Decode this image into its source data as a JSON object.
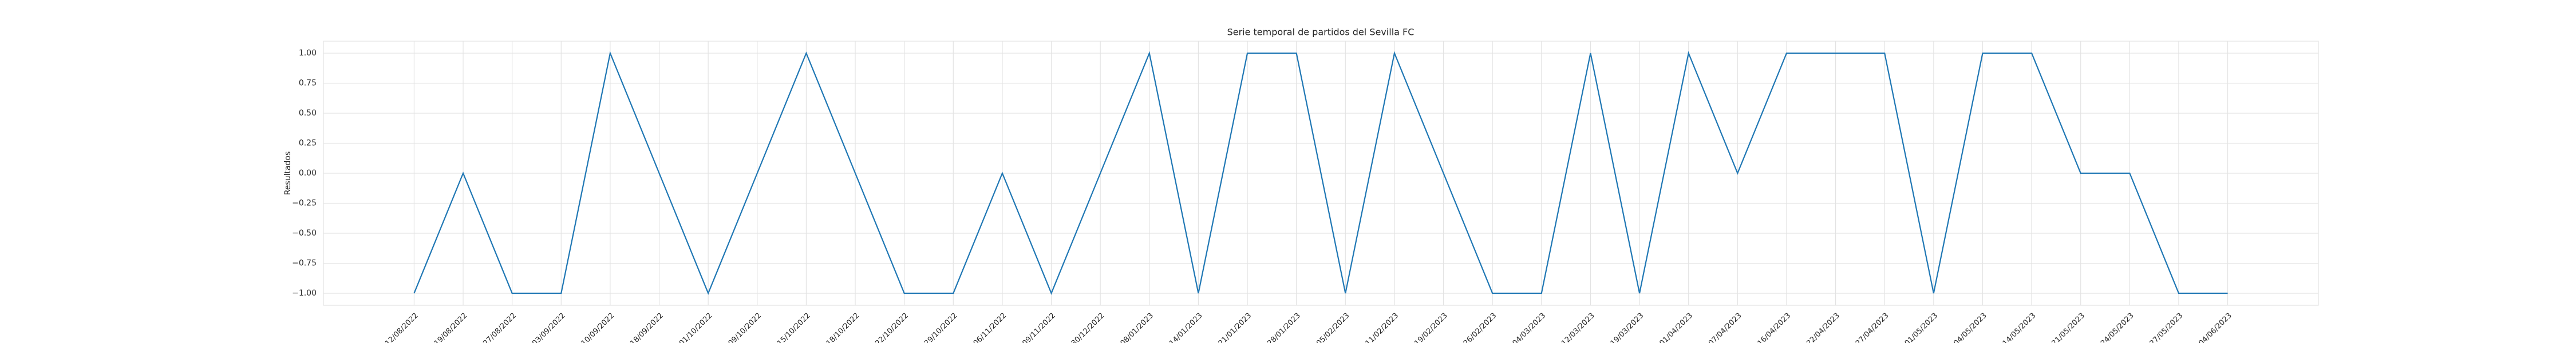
{
  "chart_data": {
    "type": "line",
    "title": "Serie temporal de partidos del Sevilla FC",
    "y_label": "Resultados",
    "categories": [
      "12/08/2022",
      "19/08/2022",
      "27/08/2022",
      "03/09/2022",
      "10/09/2022",
      "18/09/2022",
      "01/10/2022",
      "09/10/2022",
      "15/10/2022",
      "18/10/2022",
      "22/10/2022",
      "29/10/2022",
      "06/11/2022",
      "09/11/2022",
      "30/12/2022",
      "08/01/2023",
      "14/01/2023",
      "21/01/2023",
      "28/01/2023",
      "05/02/2023",
      "11/02/2023",
      "19/02/2023",
      "26/02/2023",
      "04/03/2023",
      "12/03/2023",
      "19/03/2023",
      "01/04/2023",
      "07/04/2023",
      "16/04/2023",
      "22/04/2023",
      "27/04/2023",
      "01/05/2023",
      "04/05/2023",
      "14/05/2023",
      "21/05/2023",
      "24/05/2023",
      "27/05/2023",
      "04/06/2023"
    ],
    "series": [
      {
        "name": "Resultados",
        "color": "#1f77b4",
        "values": [
          -1,
          0,
          -1,
          -1,
          1,
          0,
          -1,
          0,
          1,
          0,
          -1,
          -1,
          0,
          -1,
          0,
          1,
          -1,
          1,
          1,
          -1,
          1,
          0,
          -1,
          -1,
          1,
          -1,
          1,
          0,
          1,
          1,
          1,
          -1,
          1,
          1,
          0,
          0,
          -1,
          -1
        ]
      }
    ],
    "ylim": [
      -1.1,
      1.1
    ],
    "yticks": [
      {
        "value": -1,
        "label": "−1.00"
      },
      {
        "value": -0.75,
        "label": "−0.75"
      },
      {
        "value": -0.5,
        "label": "−0.50"
      },
      {
        "value": -0.25,
        "label": "−0.25"
      },
      {
        "value": 0,
        "label": "0.00"
      },
      {
        "value": 0.25,
        "label": "0.25"
      },
      {
        "value": 0.5,
        "label": "0.50"
      },
      {
        "value": 0.75,
        "label": "0.75"
      },
      {
        "value": 1,
        "label": "1.00"
      }
    ],
    "grid": true
  }
}
